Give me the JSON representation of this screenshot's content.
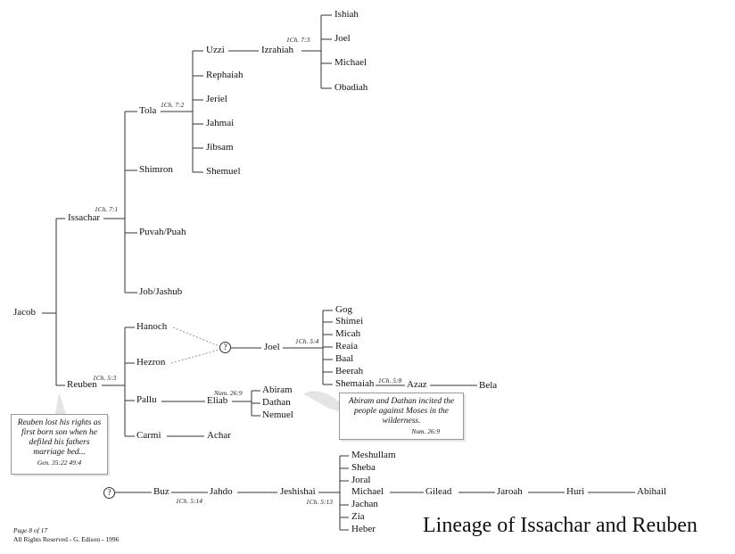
{
  "title": "Lineage of Issachar and Reuben",
  "footer": {
    "page": "Page 8 of 17",
    "rights": "All Rights Reserved  -  G. Edison  -  1996"
  },
  "people": {
    "jacob": "Jacob",
    "issachar": "Issachar",
    "reuben": "Reuben",
    "tola": "Tola",
    "shimron": "Shimron",
    "puvah": "Puvah/Puah",
    "job": "Job/Jashub",
    "uzzi": "Uzzi",
    "rephaiah": "Rephaiah",
    "jeriel": "Jeriel",
    "jahmai": "Jahmai",
    "jibsam": "Jibsam",
    "shemuel": "Shemuel",
    "izrahiah": "Izrahiah",
    "ishiah": "Ishiah",
    "joel1": "Joel",
    "michael1": "Michael",
    "obadiah": "Obadiah",
    "hanoch": "Hanoch",
    "hezron": "Hezron",
    "pallu": "Pallu",
    "carmi": "Carmi",
    "joel2": "Joel",
    "gog": "Gog",
    "shimei": "Shimei",
    "micah": "Micah",
    "reaia": "Reaia",
    "baal": "Baal",
    "beerah": "Beerah",
    "shemaiah": "Shemaiah",
    "azaz": "Azaz",
    "bela": "Bela",
    "eliab": "Eliab",
    "abiram": "Abiram",
    "dathan": "Dathan",
    "nemuel": "Nemuel",
    "achar": "Achar",
    "buz": "Buz",
    "jahdo": "Jahdo",
    "jeshishai": "Jeshishai",
    "meshullam": "Meshullam",
    "sheba": "Sheba",
    "joral": "Joral",
    "michael2": "Michael",
    "jachan": "Jachan",
    "zia": "Zia",
    "heber": "Heber",
    "gilead": "Gilead",
    "jaroah": "Jaroah",
    "huri": "Huri",
    "abihail": "Abihail"
  },
  "unknown_marker": "?",
  "refs": {
    "izrahiah": "1Ch. 7:3",
    "tola": "1Ch. 7:2",
    "issachar": "1Ch. 7:1",
    "reuben": "1Ch. 5:3",
    "joel": "1Ch. 5:4",
    "shemaiah": "1Ch. 5:8",
    "eliab": "Num. 26:9",
    "jahdo": "1Ch. 5:14",
    "jeshishai": "1Ch. 5:13"
  },
  "notes": {
    "reuben": {
      "text": "Reuben lost his rights as first born son when he defiled his fathers marriage bed...",
      "cite": "Gen. 35:22  49:4"
    },
    "abiram": {
      "text": "Abiram and Dathan incited the people against Moses in the wilderness.",
      "cite": "Num. 26:9"
    }
  }
}
